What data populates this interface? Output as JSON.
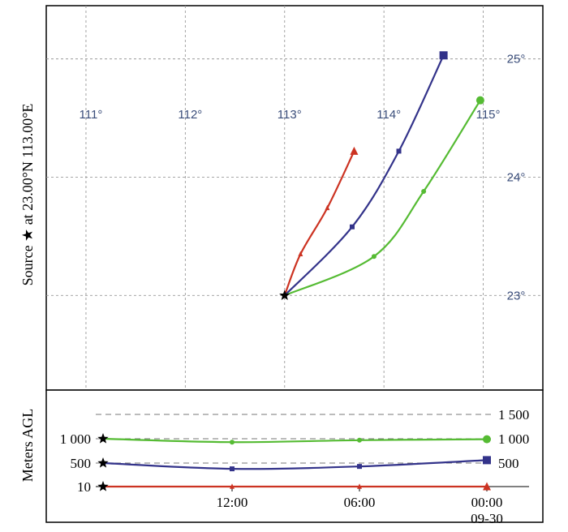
{
  "chart_data": [
    {
      "type": "line",
      "subtype": "trajectory-map",
      "ylabel": "Source ★ at 23.00°N 113.00°E",
      "source_symbol": "★",
      "lon_ticks": [
        111,
        112,
        113,
        114,
        115
      ],
      "lon_tick_labels": [
        "111°",
        "112°",
        "113°",
        "114°",
        "115°"
      ],
      "lat_ticks": [
        23,
        24,
        25
      ],
      "lat_tick_labels": [
        "23°",
        "24°",
        "25°"
      ],
      "xlim": [
        110.6,
        115.6
      ],
      "ylim": [
        22.2,
        25.45
      ],
      "grid": true,
      "source": {
        "lon": 113.0,
        "lat": 23.0
      },
      "series": [
        {
          "color": "#cc3322",
          "marker": "triangle",
          "points": [
            [
              113.0,
              23.0
            ],
            [
              113.16,
              23.35
            ],
            [
              113.43,
              23.74
            ],
            [
              113.7,
              24.22
            ]
          ]
        },
        {
          "color": "#33338a",
          "marker": "square",
          "points": [
            [
              113.0,
              23.0
            ],
            [
              113.68,
              23.58
            ],
            [
              114.15,
              24.22
            ],
            [
              114.6,
              25.03
            ]
          ]
        },
        {
          "color": "#55bb33",
          "marker": "circle",
          "points": [
            [
              113.0,
              23.0
            ],
            [
              113.9,
              23.33
            ],
            [
              114.4,
              23.88
            ],
            [
              114.97,
              24.65
            ]
          ]
        }
      ]
    },
    {
      "type": "line",
      "subtype": "height-profile",
      "ylabel": "Meters AGL",
      "x": [
        0,
        1,
        2,
        3
      ],
      "x_tick_labels": [
        "",
        "12:00",
        "06:00",
        "00:00"
      ],
      "x_tick_sublabels": [
        "",
        "",
        "",
        "09-30"
      ],
      "y_ticks": [
        10,
        500,
        1000,
        1500
      ],
      "left_tick_labels": [
        "10",
        "500",
        "1 000"
      ],
      "right_tick_labels": [
        "500",
        "1 000",
        "1 500"
      ],
      "ylim": [
        10,
        1500
      ],
      "grid": "dashed",
      "series": [
        {
          "color": "#cc3322",
          "marker": "triangle",
          "values": [
            10,
            10,
            10,
            10
          ]
        },
        {
          "color": "#33338a",
          "marker": "square",
          "values": [
            500,
            380,
            430,
            560
          ]
        },
        {
          "color": "#55bb33",
          "marker": "circle",
          "values": [
            1000,
            930,
            970,
            990
          ]
        }
      ]
    }
  ]
}
